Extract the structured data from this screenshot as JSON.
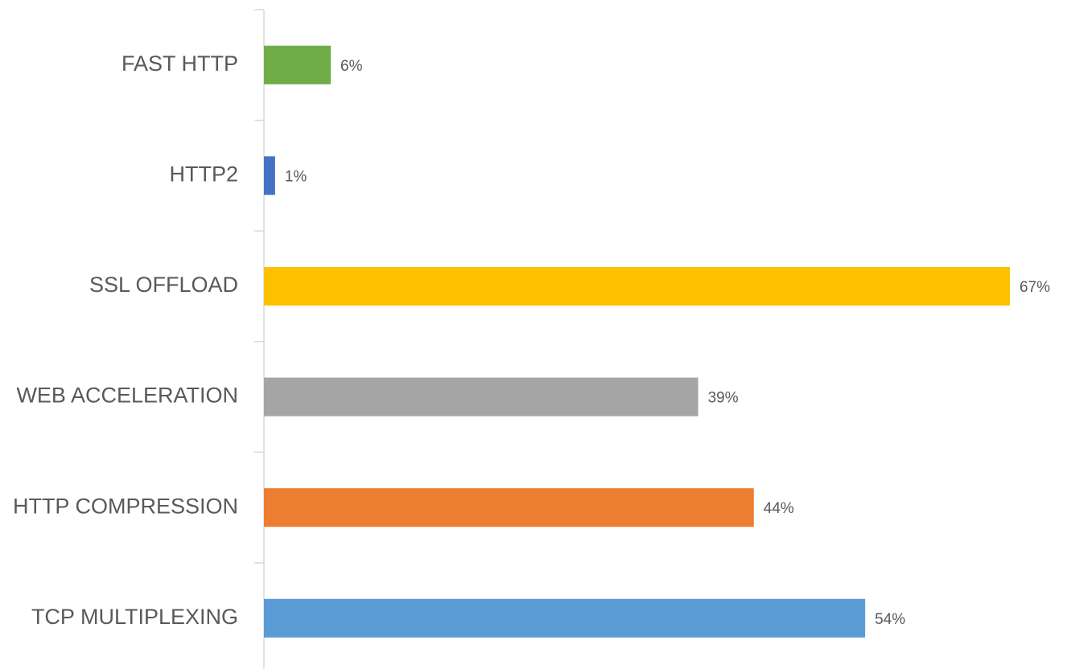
{
  "chart_data": {
    "type": "hbar",
    "categories": [
      "FAST HTTP",
      "HTTP2",
      "SSL OFFLOAD",
      "WEB ACCELERATION",
      "HTTP COMPRESSION",
      "TCP MULTIPLEXING"
    ],
    "values": [
      6,
      1,
      67,
      39,
      44,
      54
    ],
    "value_labels": [
      "6%",
      "1%",
      "67%",
      "39%",
      "44%",
      "54%"
    ],
    "colors": [
      "#70ad47",
      "#4472c4",
      "#ffc000",
      "#a5a5a5",
      "#ed7d31",
      "#5b9bd5"
    ]
  }
}
